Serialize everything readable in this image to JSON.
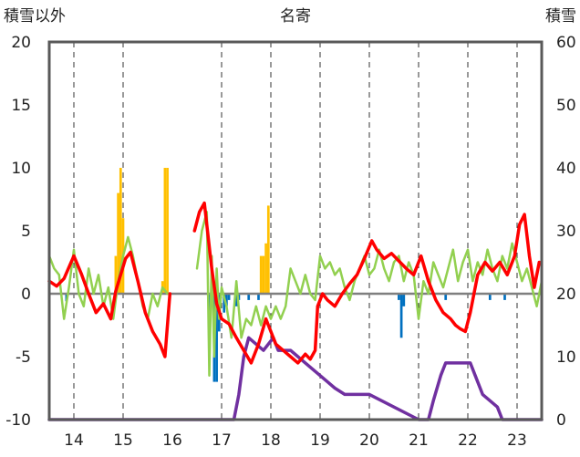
{
  "chart_data": {
    "type": "line",
    "title": "名寄",
    "ylabel_left": "積雪以外",
    "ylabel_right": "積雪",
    "xlim": [
      13.5,
      23.5
    ],
    "ylim_left": [
      -10,
      20
    ],
    "ylim_right": [
      0,
      60
    ],
    "x_ticks": [
      "14",
      "15",
      "16",
      "17",
      "18",
      "19",
      "20",
      "21",
      "22",
      "23"
    ],
    "y_ticks_left": [
      "20",
      "15",
      "10",
      "5",
      "0",
      "-5",
      "-10"
    ],
    "y_ticks_right": [
      "60",
      "50",
      "40",
      "30",
      "20",
      "10",
      "0"
    ],
    "grid": "dashed vertical",
    "colors": {
      "temperature": "#ff0000",
      "green_line": "#92d050",
      "snow_depth": "#7030a0",
      "orange_bars": "#ffc000",
      "blue_bars": "#0070c0",
      "gap": "#ffffff",
      "frame": "#595959",
      "zero_line": "#7f7f7f"
    },
    "gaps_x": [
      15.95,
      16.45
    ],
    "series": [
      {
        "key": "temperature",
        "axis": "left",
        "x": [
          13.5,
          13.65,
          13.8,
          14.0,
          14.15,
          14.3,
          14.45,
          14.6,
          14.75,
          14.85,
          14.95,
          15.05,
          15.15,
          15.3,
          15.45,
          15.6,
          15.75,
          15.85,
          15.95,
          16.45,
          16.55,
          16.65,
          16.8,
          16.9,
          17.0,
          17.15,
          17.3,
          17.45,
          17.6,
          17.75,
          17.9,
          18.0,
          18.1,
          18.25,
          18.4,
          18.55,
          18.7,
          18.8,
          18.9,
          18.95,
          19.05,
          19.15,
          19.3,
          19.45,
          19.6,
          19.75,
          19.9,
          20.05,
          20.15,
          20.3,
          20.45,
          20.6,
          20.75,
          20.9,
          21.05,
          21.2,
          21.35,
          21.5,
          21.65,
          21.75,
          21.85,
          21.95,
          22.05,
          22.2,
          22.35,
          22.5,
          22.65,
          22.8,
          22.95,
          23.05,
          23.15,
          23.25,
          23.35,
          23.45
        ],
        "y": [
          1.0,
          0.6,
          1.2,
          3.0,
          1.6,
          0.0,
          -1.5,
          -0.8,
          -2.0,
          0.2,
          1.5,
          2.8,
          3.3,
          1.0,
          -1.5,
          -3.0,
          -4.0,
          -5.0,
          0.0,
          5.0,
          6.5,
          7.2,
          2.0,
          -0.8,
          -2.0,
          -2.4,
          -3.5,
          -4.5,
          -5.5,
          -4.0,
          -2.0,
          -3.0,
          -4.0,
          -4.5,
          -5.0,
          -5.5,
          -4.8,
          -5.2,
          -4.5,
          -1.0,
          0.0,
          -0.5,
          -1.0,
          0.0,
          0.8,
          1.5,
          2.8,
          4.2,
          3.5,
          2.8,
          3.2,
          2.6,
          2.0,
          1.5,
          3.0,
          1.0,
          -0.5,
          -1.5,
          -2.0,
          -2.5,
          -2.8,
          -3.0,
          -1.5,
          1.5,
          2.5,
          1.8,
          2.5,
          1.5,
          3.0,
          5.5,
          6.3,
          3.0,
          0.5,
          2.5
        ]
      },
      {
        "key": "green_line",
        "axis": "left",
        "x": [
          13.5,
          13.6,
          13.7,
          13.8,
          13.9,
          14.0,
          14.1,
          14.2,
          14.3,
          14.4,
          14.5,
          14.6,
          14.7,
          14.8,
          14.9,
          15.0,
          15.1,
          15.2,
          15.3,
          15.4,
          15.5,
          15.6,
          15.7,
          15.8,
          15.9,
          16.5,
          16.6,
          16.7,
          16.75,
          16.8,
          16.85,
          16.9,
          16.95,
          17.0,
          17.1,
          17.2,
          17.3,
          17.4,
          17.5,
          17.6,
          17.7,
          17.8,
          17.9,
          18.0,
          18.1,
          18.2,
          18.3,
          18.4,
          18.5,
          18.6,
          18.7,
          18.8,
          18.9,
          19.0,
          19.1,
          19.2,
          19.3,
          19.4,
          19.5,
          19.6,
          19.7,
          19.8,
          19.9,
          20.0,
          20.1,
          20.2,
          20.3,
          20.4,
          20.5,
          20.6,
          20.7,
          20.8,
          20.9,
          21.0,
          21.1,
          21.2,
          21.3,
          21.4,
          21.5,
          21.6,
          21.7,
          21.8,
          21.9,
          22.0,
          22.1,
          22.2,
          22.3,
          22.4,
          22.5,
          22.6,
          22.7,
          22.8,
          22.9,
          23.0,
          23.1,
          23.2,
          23.3,
          23.4,
          23.5
        ],
        "y": [
          3.0,
          2.0,
          1.5,
          -2.0,
          0.5,
          3.5,
          0.0,
          -1.0,
          2.0,
          0.0,
          1.5,
          -1.0,
          0.5,
          -2.0,
          1.0,
          3.0,
          4.5,
          3.0,
          1.0,
          -1.0,
          -2.0,
          0.0,
          -1.0,
          0.5,
          0.0,
          2.0,
          5.0,
          6.5,
          -6.5,
          3.0,
          -5.0,
          2.0,
          -2.0,
          0.5,
          -1.0,
          -3.5,
          1.0,
          -3.5,
          -2.0,
          -2.5,
          -1.0,
          -2.5,
          -1.0,
          -2.0,
          -1.0,
          -2.0,
          -1.0,
          2.0,
          1.0,
          0.0,
          1.5,
          0.0,
          -0.5,
          3.0,
          2.0,
          2.5,
          1.5,
          2.0,
          0.5,
          -0.5,
          1.0,
          2.0,
          3.0,
          1.5,
          2.0,
          3.5,
          2.0,
          1.0,
          2.5,
          3.0,
          1.0,
          2.5,
          1.5,
          -2.0,
          1.0,
          0.0,
          2.5,
          1.5,
          0.5,
          2.0,
          3.5,
          1.0,
          2.5,
          3.5,
          1.0,
          2.5,
          1.5,
          3.5,
          2.0,
          1.0,
          3.0,
          2.0,
          4.0,
          2.5,
          1.0,
          2.0,
          0.5,
          -1.0,
          1.0
        ]
      },
      {
        "key": "snow_depth",
        "axis": "right",
        "x": [
          13.5,
          15.95,
          16.45,
          17.25,
          17.35,
          17.45,
          17.55,
          17.7,
          17.85,
          17.95,
          18.05,
          18.15,
          18.25,
          18.4,
          18.55,
          18.7,
          18.85,
          19.0,
          19.15,
          19.3,
          19.5,
          19.7,
          19.9,
          19.95,
          20.0,
          21.0,
          21.1,
          21.2,
          21.3,
          21.45,
          21.55,
          21.65,
          21.8,
          21.95,
          22.05,
          22.15,
          22.3,
          22.45,
          22.6,
          22.7,
          23.5
        ],
        "y": [
          0,
          0,
          0,
          0,
          4,
          10,
          13,
          12,
          11,
          12,
          13,
          11,
          11,
          11,
          10,
          9,
          8,
          7,
          6,
          5,
          4,
          4,
          4,
          4,
          4,
          0,
          0,
          0,
          3,
          7,
          9,
          9,
          9,
          9,
          9,
          7,
          4,
          3,
          2,
          0,
          0
        ]
      }
    ],
    "bars": [
      {
        "key": "orange_bars",
        "axis": "left",
        "width": 0.05,
        "x": [
          14.85,
          14.9,
          14.95,
          15.0,
          15.8,
          15.85,
          15.9,
          17.8,
          17.85,
          17.9,
          17.95
        ],
        "y": [
          3.0,
          8.0,
          10.0,
          6.0,
          1.0,
          10.0,
          10.0,
          3.0,
          3.0,
          4.0,
          7.0
        ]
      },
      {
        "key": "blue_bars",
        "axis": "left",
        "width": 0.05,
        "x": [
          13.85,
          16.75,
          16.85,
          16.9,
          16.95,
          17.05,
          17.1,
          17.15,
          17.3,
          17.35,
          17.55,
          17.75,
          20.6,
          20.65,
          20.7,
          21.55,
          22.45,
          22.75
        ],
        "y": [
          -0.6,
          -2.5,
          -7.0,
          -7.0,
          -3.0,
          -1.5,
          -1.0,
          -0.5,
          -1.0,
          -0.5,
          -0.5,
          -0.5,
          -0.5,
          -3.5,
          -1.0,
          -0.5,
          -0.5,
          -0.5
        ]
      }
    ]
  }
}
